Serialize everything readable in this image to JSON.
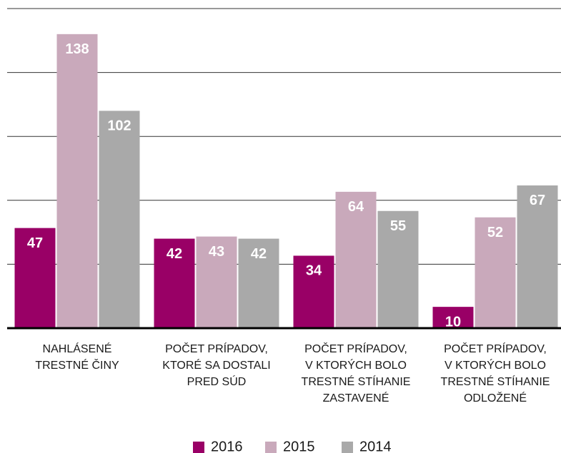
{
  "chart_data": {
    "type": "bar",
    "categories": [
      "NAHLÁSENÉ\nTRESTNÉ ČINY",
      "POČET PRÍPADOV,\nKTORÉ SA DOSTALI\nPRED SÚD",
      "POČET PRÍPADOV,\nV KTORÝCH BOLO\nTRESTNÉ STÍHANIE\nZASTAVENÉ",
      "POČET PRÍPADOV,\nV KTORÝCH BOLO\nTRESTNÉ STÍHANIE\nODLOŽENÉ"
    ],
    "series": [
      {
        "name": "2016",
        "color": "#990066",
        "values": [
          47,
          42,
          34,
          10
        ]
      },
      {
        "name": "2015",
        "color": "#c9a9bb",
        "values": [
          138,
          43,
          64,
          52
        ]
      },
      {
        "name": "2014",
        "color": "#a9a9a9",
        "values": [
          102,
          42,
          55,
          67
        ]
      }
    ],
    "ylim": [
      0,
      150
    ],
    "yticks": [
      0,
      30,
      60,
      90,
      120,
      150
    ],
    "grid": true
  }
}
